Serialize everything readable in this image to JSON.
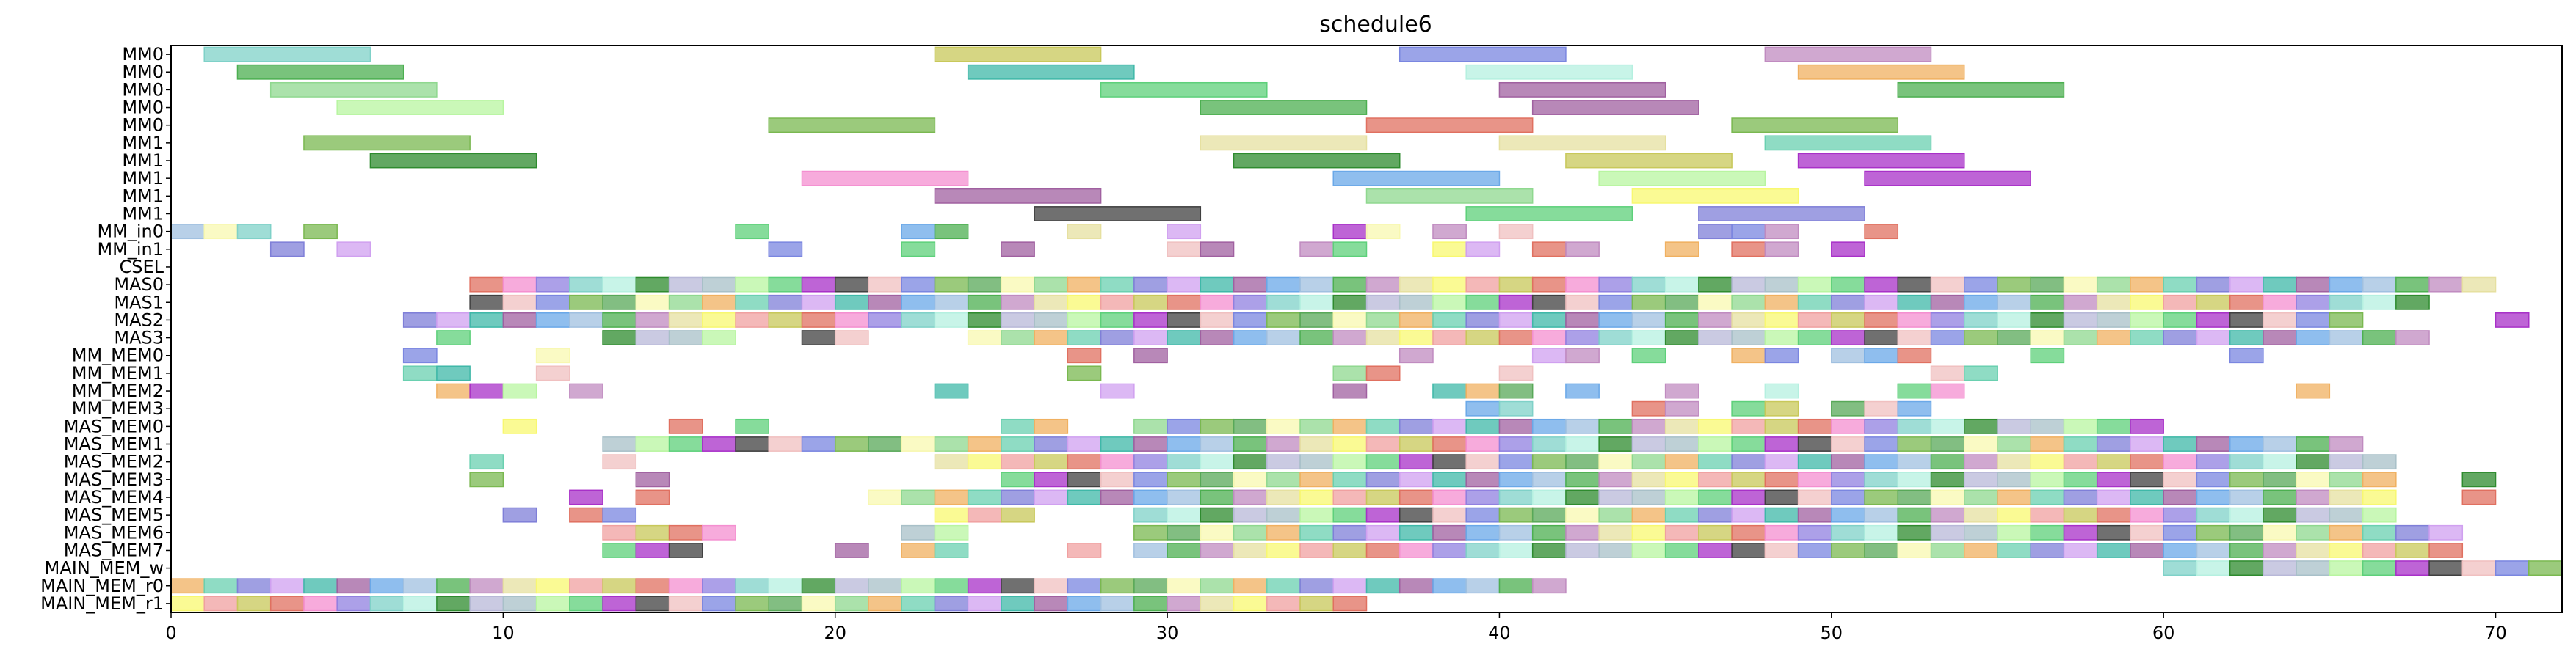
{
  "chart_data": {
    "type": "gantt",
    "title": "schedule6",
    "xlabel": "",
    "ylabel": "",
    "xlim": [
      0,
      72
    ],
    "x_ticks": [
      0,
      10,
      20,
      30,
      40,
      50,
      60,
      70
    ],
    "grid": false,
    "rows": [
      "MM0",
      "MM0",
      "MM0",
      "MM0",
      "MM0",
      "MM1",
      "MM1",
      "MM1",
      "MM1",
      "MM1",
      "MM_in0",
      "MM_in1",
      "CSEL",
      "MAS0",
      "MAS1",
      "MAS2",
      "MAS3",
      "MM_MEM0",
      "MM_MEM1",
      "MM_MEM2",
      "MM_MEM3",
      "MAS_MEM0",
      "MAS_MEM1",
      "MAS_MEM2",
      "MAS_MEM3",
      "MAS_MEM4",
      "MAS_MEM5",
      "MAS_MEM6",
      "MAS_MEM7",
      "MAIN_MEM_w",
      "MAIN_MEM_r0",
      "MAIN_MEM_r1"
    ],
    "palette": [
      "#7fd1c8",
      "#4caf50",
      "#8fd88f",
      "#b8f5a0",
      "#c8c85a",
      "#3fb8a8",
      "#7a86e0",
      "#b5f0e0",
      "#c08bc0",
      "#f0b060",
      "#5dd07a",
      "#e07060",
      "#a060a0",
      "#7ab850",
      "#2e8b2e",
      "#e6e0a0",
      "#6ad0b0",
      "#a830c8",
      "#f48fd0",
      "#6aa8e8",
      "#58a858",
      "#b8b8d8",
      "#f8f870",
      "#7f7fd8",
      "#404040",
      "#9080e0",
      "#a0c0e0",
      "#f8f8b0",
      "#a8c0c8",
      "#f0a0a0",
      "#d0a0f0",
      "#f0c0c0"
    ],
    "tasks": [
      {
        "row": 0,
        "start": 1,
        "end": 6,
        "c": 0
      },
      {
        "row": 0,
        "start": 23,
        "end": 28,
        "c": 4
      },
      {
        "row": 0,
        "start": 37,
        "end": 42,
        "c": 6
      },
      {
        "row": 0,
        "start": 48,
        "end": 53,
        "c": 8
      },
      {
        "row": 1,
        "start": 2,
        "end": 7,
        "c": 1
      },
      {
        "row": 1,
        "start": 24,
        "end": 29,
        "c": 5
      },
      {
        "row": 1,
        "start": 39,
        "end": 44,
        "c": 7
      },
      {
        "row": 1,
        "start": 49,
        "end": 54,
        "c": 9
      },
      {
        "row": 2,
        "start": 3,
        "end": 8,
        "c": 2
      },
      {
        "row": 2,
        "start": 28,
        "end": 33,
        "c": 10
      },
      {
        "row": 2,
        "start": 40,
        "end": 45,
        "c": 12
      },
      {
        "row": 2,
        "start": 52,
        "end": 57,
        "c": 1
      },
      {
        "row": 3,
        "start": 5,
        "end": 10,
        "c": 3
      },
      {
        "row": 3,
        "start": 31,
        "end": 36,
        "c": 1
      },
      {
        "row": 3,
        "start": 41,
        "end": 46,
        "c": 12
      },
      {
        "row": 4,
        "start": 18,
        "end": 23,
        "c": 13
      },
      {
        "row": 4,
        "start": 36,
        "end": 41,
        "c": 11
      },
      {
        "row": 4,
        "start": 47,
        "end": 52,
        "c": 13
      },
      {
        "row": 5,
        "start": 4,
        "end": 9,
        "c": 13
      },
      {
        "row": 5,
        "start": 31,
        "end": 36,
        "c": 15
      },
      {
        "row": 5,
        "start": 40,
        "end": 45,
        "c": 15
      },
      {
        "row": 5,
        "start": 48,
        "end": 53,
        "c": 16
      },
      {
        "row": 6,
        "start": 6,
        "end": 11,
        "c": 14
      },
      {
        "row": 6,
        "start": 32,
        "end": 37,
        "c": 14
      },
      {
        "row": 6,
        "start": 42,
        "end": 47,
        "c": 4
      },
      {
        "row": 6,
        "start": 49,
        "end": 54,
        "c": 17
      },
      {
        "row": 7,
        "start": 19,
        "end": 24,
        "c": 18
      },
      {
        "row": 7,
        "start": 35,
        "end": 40,
        "c": 19
      },
      {
        "row": 7,
        "start": 43,
        "end": 48,
        "c": 3
      },
      {
        "row": 7,
        "start": 51,
        "end": 56,
        "c": 17
      },
      {
        "row": 8,
        "start": 23,
        "end": 28,
        "c": 12
      },
      {
        "row": 8,
        "start": 36,
        "end": 41,
        "c": 2
      },
      {
        "row": 8,
        "start": 44,
        "end": 49,
        "c": 22
      },
      {
        "row": 9,
        "start": 26,
        "end": 31,
        "c": 24
      },
      {
        "row": 9,
        "start": 39,
        "end": 44,
        "c": 10
      },
      {
        "row": 9,
        "start": 46,
        "end": 51,
        "c": 23
      },
      {
        "row": 10,
        "start": 0,
        "end": 1,
        "c": 26
      },
      {
        "row": 10,
        "start": 1,
        "end": 2,
        "c": 27
      },
      {
        "row": 10,
        "start": 2,
        "end": 3,
        "c": 0
      },
      {
        "row": 10,
        "start": 4,
        "end": 5,
        "c": 13
      },
      {
        "row": 10,
        "start": 17,
        "end": 18,
        "c": 10
      },
      {
        "row": 10,
        "start": 22,
        "end": 23,
        "c": 19
      },
      {
        "row": 10,
        "start": 23,
        "end": 24,
        "c": 1
      },
      {
        "row": 10,
        "start": 27,
        "end": 28,
        "c": 15
      },
      {
        "row": 10,
        "start": 30,
        "end": 31,
        "c": 30
      },
      {
        "row": 10,
        "start": 35,
        "end": 36,
        "c": 17
      },
      {
        "row": 10,
        "start": 36,
        "end": 37,
        "c": 27
      },
      {
        "row": 10,
        "start": 38,
        "end": 39,
        "c": 8
      },
      {
        "row": 10,
        "start": 40,
        "end": 41,
        "c": 31
      },
      {
        "row": 10,
        "start": 46,
        "end": 47,
        "c": 23
      },
      {
        "row": 10,
        "start": 47,
        "end": 48,
        "c": 6
      },
      {
        "row": 10,
        "start": 48,
        "end": 49,
        "c": 8
      },
      {
        "row": 10,
        "start": 51,
        "end": 52,
        "c": 11
      },
      {
        "row": 11,
        "start": 3,
        "end": 4,
        "c": 23
      },
      {
        "row": 11,
        "start": 5,
        "end": 6,
        "c": 30
      },
      {
        "row": 11,
        "start": 18,
        "end": 19,
        "c": 6
      },
      {
        "row": 11,
        "start": 22,
        "end": 23,
        "c": 10
      },
      {
        "row": 11,
        "start": 25,
        "end": 26,
        "c": 12
      },
      {
        "row": 11,
        "start": 30,
        "end": 31,
        "c": 31
      },
      {
        "row": 11,
        "start": 31,
        "end": 32,
        "c": 12
      },
      {
        "row": 11,
        "start": 34,
        "end": 35,
        "c": 8
      },
      {
        "row": 11,
        "start": 35,
        "end": 36,
        "c": 10
      },
      {
        "row": 11,
        "start": 38,
        "end": 39,
        "c": 22
      },
      {
        "row": 11,
        "start": 39,
        "end": 40,
        "c": 30
      },
      {
        "row": 11,
        "start": 41,
        "end": 42,
        "c": 11
      },
      {
        "row": 11,
        "start": 42,
        "end": 43,
        "c": 8
      },
      {
        "row": 11,
        "start": 45,
        "end": 46,
        "c": 9
      },
      {
        "row": 11,
        "start": 47,
        "end": 48,
        "c": 11
      },
      {
        "row": 11,
        "start": 48,
        "end": 49,
        "c": 8
      },
      {
        "row": 11,
        "start": 50,
        "end": 51,
        "c": 17
      },
      {
        "row": 13,
        "start": 9,
        "end": 70,
        "c": -1
      },
      {
        "row": 14,
        "start": 9,
        "end": 68,
        "c": -1
      },
      {
        "row": 15,
        "start": 7,
        "end": 66,
        "c": -1
      },
      {
        "row": 15,
        "start": 70,
        "end": 71,
        "c": 17
      },
      {
        "row": 16,
        "start": 8,
        "end": 9,
        "c": 10
      },
      {
        "row": 16,
        "start": 13,
        "end": 17,
        "c": -1
      },
      {
        "row": 16,
        "start": 19,
        "end": 21,
        "c": -1
      },
      {
        "row": 16,
        "start": 24,
        "end": 68,
        "c": -1
      },
      {
        "row": 17,
        "start": 7,
        "end": 8,
        "c": 6
      },
      {
        "row": 17,
        "start": 11,
        "end": 12,
        "c": 27
      },
      {
        "row": 17,
        "start": 27,
        "end": 28,
        "c": 11
      },
      {
        "row": 17,
        "start": 29,
        "end": 30,
        "c": 12
      },
      {
        "row": 17,
        "start": 37,
        "end": 38,
        "c": 8
      },
      {
        "row": 17,
        "start": 41,
        "end": 42,
        "c": 30
      },
      {
        "row": 17,
        "start": 42,
        "end": 43,
        "c": 8
      },
      {
        "row": 17,
        "start": 44,
        "end": 45,
        "c": 10
      },
      {
        "row": 17,
        "start": 47,
        "end": 48,
        "c": 9
      },
      {
        "row": 17,
        "start": 48,
        "end": 49,
        "c": 6
      },
      {
        "row": 17,
        "start": 50,
        "end": 51,
        "c": 26
      },
      {
        "row": 17,
        "start": 51,
        "end": 52,
        "c": 19
      },
      {
        "row": 17,
        "start": 52,
        "end": 53,
        "c": 11
      },
      {
        "row": 17,
        "start": 56,
        "end": 57,
        "c": 10
      },
      {
        "row": 17,
        "start": 62,
        "end": 63,
        "c": 6
      },
      {
        "row": 18,
        "start": 7,
        "end": 8,
        "c": 16
      },
      {
        "row": 18,
        "start": 8,
        "end": 9,
        "c": 5
      },
      {
        "row": 18,
        "start": 11,
        "end": 12,
        "c": 31
      },
      {
        "row": 18,
        "start": 27,
        "end": 28,
        "c": 13
      },
      {
        "row": 18,
        "start": 35,
        "end": 36,
        "c": 2
      },
      {
        "row": 18,
        "start": 36,
        "end": 37,
        "c": 11
      },
      {
        "row": 18,
        "start": 40,
        "end": 41,
        "c": 31
      },
      {
        "row": 18,
        "start": 53,
        "end": 54,
        "c": 31
      },
      {
        "row": 18,
        "start": 54,
        "end": 55,
        "c": 16
      },
      {
        "row": 19,
        "start": 8,
        "end": 9,
        "c": 9
      },
      {
        "row": 19,
        "start": 9,
        "end": 10,
        "c": 17
      },
      {
        "row": 19,
        "start": 10,
        "end": 11,
        "c": 3
      },
      {
        "row": 19,
        "start": 12,
        "end": 13,
        "c": 8
      },
      {
        "row": 19,
        "start": 23,
        "end": 24,
        "c": 5
      },
      {
        "row": 19,
        "start": 28,
        "end": 29,
        "c": 30
      },
      {
        "row": 19,
        "start": 35,
        "end": 36,
        "c": 12
      },
      {
        "row": 19,
        "start": 38,
        "end": 39,
        "c": 5
      },
      {
        "row": 19,
        "start": 39,
        "end": 40,
        "c": 9
      },
      {
        "row": 19,
        "start": 40,
        "end": 41,
        "c": 20
      },
      {
        "row": 19,
        "start": 42,
        "end": 43,
        "c": 19
      },
      {
        "row": 19,
        "start": 45,
        "end": 46,
        "c": 8
      },
      {
        "row": 19,
        "start": 48,
        "end": 49,
        "c": 7
      },
      {
        "row": 19,
        "start": 52,
        "end": 53,
        "c": 10
      },
      {
        "row": 19,
        "start": 53,
        "end": 54,
        "c": 18
      },
      {
        "row": 19,
        "start": 64,
        "end": 65,
        "c": 9
      },
      {
        "row": 20,
        "start": 39,
        "end": 40,
        "c": 19
      },
      {
        "row": 20,
        "start": 40,
        "end": 41,
        "c": 0
      },
      {
        "row": 20,
        "start": 44,
        "end": 45,
        "c": 11
      },
      {
        "row": 20,
        "start": 45,
        "end": 46,
        "c": 8
      },
      {
        "row": 20,
        "start": 47,
        "end": 48,
        "c": 10
      },
      {
        "row": 20,
        "start": 48,
        "end": 49,
        "c": 4
      },
      {
        "row": 20,
        "start": 50,
        "end": 51,
        "c": 20
      },
      {
        "row": 20,
        "start": 51,
        "end": 52,
        "c": 31
      },
      {
        "row": 20,
        "start": 52,
        "end": 53,
        "c": 19
      },
      {
        "row": 21,
        "start": 10,
        "end": 11,
        "c": 22
      },
      {
        "row": 21,
        "start": 15,
        "end": 16,
        "c": 11
      },
      {
        "row": 21,
        "start": 17,
        "end": 18,
        "c": 10
      },
      {
        "row": 21,
        "start": 25,
        "end": 26,
        "c": 16
      },
      {
        "row": 21,
        "start": 26,
        "end": 27,
        "c": 9
      },
      {
        "row": 21,
        "start": 29,
        "end": 30,
        "c": 2
      },
      {
        "row": 21,
        "start": 30,
        "end": 60,
        "c": -1
      },
      {
        "row": 22,
        "start": 13,
        "end": 66,
        "c": -1
      },
      {
        "row": 23,
        "start": 9,
        "end": 10,
        "c": 16
      },
      {
        "row": 23,
        "start": 13,
        "end": 14,
        "c": 31
      },
      {
        "row": 23,
        "start": 23,
        "end": 67,
        "c": -1
      },
      {
        "row": 24,
        "start": 9,
        "end": 10,
        "c": 13
      },
      {
        "row": 24,
        "start": 14,
        "end": 15,
        "c": 12
      },
      {
        "row": 24,
        "start": 25,
        "end": 67,
        "c": -1
      },
      {
        "row": 24,
        "start": 69,
        "end": 70,
        "c": 14
      },
      {
        "row": 25,
        "start": 12,
        "end": 13,
        "c": 17
      },
      {
        "row": 25,
        "start": 14,
        "end": 15,
        "c": 11
      },
      {
        "row": 25,
        "start": 21,
        "end": 67,
        "c": -1
      },
      {
        "row": 25,
        "start": 69,
        "end": 70,
        "c": 11
      },
      {
        "row": 26,
        "start": 10,
        "end": 11,
        "c": 23
      },
      {
        "row": 26,
        "start": 12,
        "end": 13,
        "c": 11
      },
      {
        "row": 26,
        "start": 13,
        "end": 14,
        "c": 6
      },
      {
        "row": 26,
        "start": 23,
        "end": 26,
        "c": -1
      },
      {
        "row": 26,
        "start": 29,
        "end": 67,
        "c": -1
      },
      {
        "row": 27,
        "start": 13,
        "end": 17,
        "c": -1
      },
      {
        "row": 27,
        "start": 22,
        "end": 24,
        "c": -1
      },
      {
        "row": 27,
        "start": 29,
        "end": 69,
        "c": -1
      },
      {
        "row": 28,
        "start": 13,
        "end": 16,
        "c": -1
      },
      {
        "row": 28,
        "start": 20,
        "end": 21,
        "c": 12
      },
      {
        "row": 28,
        "start": 22,
        "end": 24,
        "c": -1
      },
      {
        "row": 28,
        "start": 27,
        "end": 28,
        "c": 29
      },
      {
        "row": 28,
        "start": 29,
        "end": 69,
        "c": -1
      },
      {
        "row": 29,
        "start": 60,
        "end": 72,
        "c": -1
      },
      {
        "row": 30,
        "start": 0,
        "end": 42,
        "c": -1
      },
      {
        "row": 31,
        "start": 0,
        "end": 36,
        "c": -1
      }
    ]
  }
}
